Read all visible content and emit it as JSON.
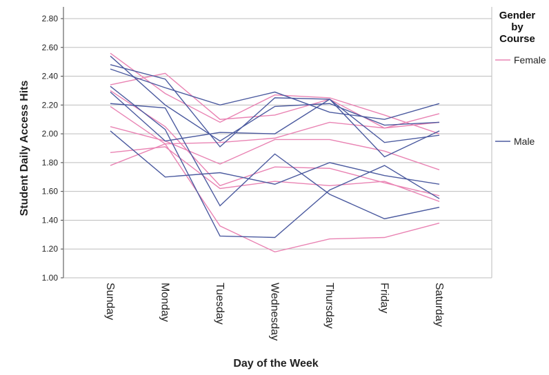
{
  "chart_data": {
    "type": "line",
    "y_label": "Student Daily Access Hits",
    "x_label": "Day of the Week",
    "legend_title": "Gender by Course",
    "categories": [
      "Sunday",
      "Monday",
      "Tuesday",
      "Wednesday",
      "Thursday",
      "Friday",
      "Saturday"
    ],
    "series": [
      {
        "name": "Female",
        "color": "#e983b3",
        "lines": [
          [
            2.56,
            2.28,
            2.08,
            2.27,
            2.25,
            2.13,
            2.0
          ],
          [
            2.34,
            2.42,
            2.1,
            2.13,
            2.24,
            2.04,
            2.08
          ],
          [
            2.19,
            1.93,
            1.36,
            1.18,
            1.27,
            1.28,
            1.38
          ],
          [
            2.05,
            1.95,
            1.79,
            1.96,
            1.96,
            1.88,
            1.75
          ],
          [
            1.87,
            1.91,
            1.62,
            1.67,
            1.64,
            1.67,
            1.53
          ],
          [
            1.78,
            1.93,
            1.94,
            1.97,
            2.08,
            2.04,
            2.14
          ],
          [
            2.3,
            2.05,
            1.64,
            1.77,
            1.76,
            1.66,
            1.57
          ]
        ]
      },
      {
        "name": "Male",
        "color": "#4b5a9f",
        "lines": [
          [
            2.54,
            2.2,
            1.95,
            2.19,
            2.21,
            2.06,
            2.08
          ],
          [
            2.48,
            2.38,
            1.91,
            2.25,
            2.24,
            1.84,
            2.02
          ],
          [
            2.45,
            2.32,
            2.2,
            2.29,
            2.15,
            2.1,
            2.21
          ],
          [
            2.33,
            2.03,
            1.29,
            1.28,
            1.61,
            1.78,
            1.55
          ],
          [
            2.21,
            2.18,
            1.5,
            1.86,
            1.58,
            1.41,
            1.49
          ],
          [
            2.29,
            1.95,
            2.01,
            2.0,
            2.24,
            1.94,
            1.99
          ],
          [
            2.02,
            1.7,
            1.73,
            1.65,
            1.8,
            1.71,
            1.65
          ]
        ]
      }
    ],
    "ylim": [
      1.0,
      2.8
    ],
    "yticks": [
      {
        "value": 1.0,
        "label": "1.00"
      },
      {
        "value": 1.2,
        "label": "1.20"
      },
      {
        "value": 1.4,
        "label": "1.40"
      },
      {
        "value": 1.6,
        "label": "1.60"
      },
      {
        "value": 1.8,
        "label": "1.80"
      },
      {
        "value": 2.0,
        "label": "2.00"
      },
      {
        "value": 2.2,
        "label": "2.20"
      },
      {
        "value": 2.4,
        "label": "2.40"
      },
      {
        "value": 2.6,
        "label": "2.60"
      },
      {
        "value": 2.8,
        "label": "2.80"
      }
    ],
    "grid": true
  }
}
